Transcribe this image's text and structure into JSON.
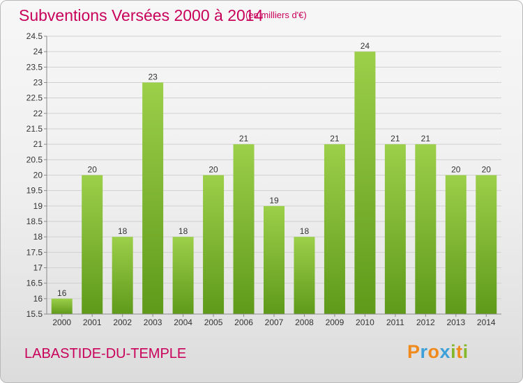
{
  "header": {
    "title": "Subventions Versées 2000 à 2014",
    "unit_note": "(en milliers d'€)"
  },
  "footer": {
    "place": "LABASTIDE-DU-TEMPLE",
    "logo_letters": [
      "P",
      "r",
      "o",
      "x",
      "i",
      "t",
      "i"
    ],
    "logo_colors": [
      "#f08a1c",
      "#3da0d8",
      "#f08a1c",
      "#3da0d8",
      "#84b82a",
      "#f08a1c",
      "#84b82a"
    ]
  },
  "colors": {
    "title": "#c8005a",
    "bar_top": "#9ccf4a",
    "bar_bottom": "#5f9a1a",
    "grid": "#d0d0d0",
    "axis_text": "#333333"
  },
  "chart_data": {
    "type": "bar",
    "categories": [
      "2000",
      "2001",
      "2002",
      "2003",
      "2004",
      "2005",
      "2006",
      "2007",
      "2008",
      "2009",
      "2010",
      "2011",
      "2012",
      "2013",
      "2014"
    ],
    "values": [
      16,
      20,
      18,
      23,
      18,
      20,
      21,
      19,
      18,
      21,
      24,
      21,
      21,
      20,
      20
    ],
    "value_labels": [
      "16",
      "20",
      "18",
      "23",
      "18",
      "20",
      "21",
      "19",
      "18",
      "21",
      "24",
      "21",
      "21",
      "20",
      "20"
    ],
    "ylim": [
      15.5,
      24.5
    ],
    "yticks": [
      15.5,
      16,
      16.5,
      17,
      17.5,
      18,
      18.5,
      19,
      19.5,
      20,
      20.5,
      21,
      21.5,
      22,
      22.5,
      23,
      23.5,
      24,
      24.5
    ],
    "ytick_labels": [
      "15.5",
      "16",
      "16.5",
      "17",
      "17.5",
      "18",
      "18.5",
      "19",
      "19.5",
      "20",
      "20.5",
      "21",
      "21.5",
      "22",
      "22.5",
      "23",
      "23.5",
      "24",
      "24.5"
    ],
    "grid": true,
    "legend": "none"
  }
}
